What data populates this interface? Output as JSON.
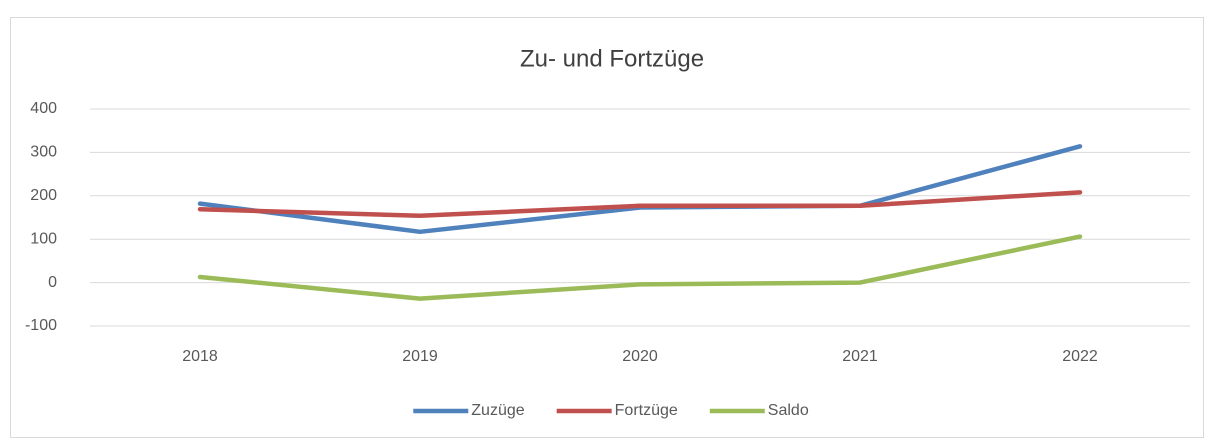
{
  "chart_data": {
    "type": "line",
    "title": "Zu- und Fortzüge",
    "categories": [
      "2018",
      "2019",
      "2020",
      "2021",
      "2022"
    ],
    "series": [
      {
        "name": "Zuzüge",
        "color": "#4f81bd",
        "values": [
          182,
          117,
          173,
          177,
          314
        ]
      },
      {
        "name": "Fortzüge",
        "color": "#c0504d",
        "values": [
          169,
          154,
          177,
          177,
          208
        ]
      },
      {
        "name": "Saldo",
        "color": "#9bbb59",
        "values": [
          13,
          -37,
          -4,
          0,
          106
        ]
      }
    ],
    "ylim": [
      -100,
      400
    ],
    "yticks": [
      -100,
      0,
      100,
      200,
      300,
      400
    ],
    "grid": true,
    "legend": "bottom"
  }
}
